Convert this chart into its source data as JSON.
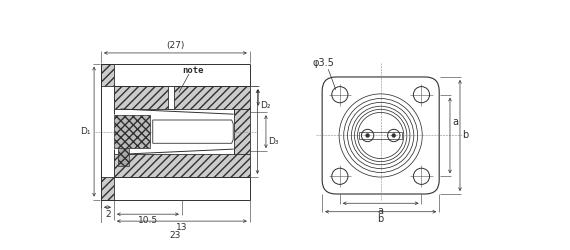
{
  "bg_color": "#ffffff",
  "line_color": "#303030",
  "dim_color": "#303030",
  "note_text": "note",
  "dim_27": "(27)",
  "dim_10_5": "10.5",
  "dim_2": "2",
  "dim_13": "13",
  "dim_23": "23",
  "dim_phi35": "φ3.5",
  "label_D1": "D₁",
  "label_D2": "D₂",
  "label_D3": "D₃",
  "label_a": "a",
  "label_b": "b"
}
